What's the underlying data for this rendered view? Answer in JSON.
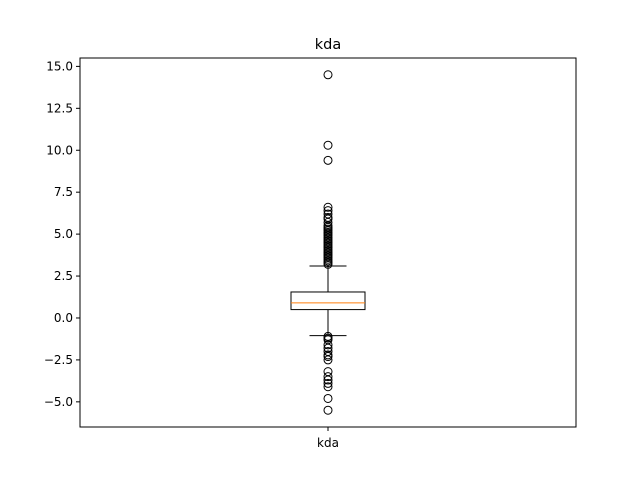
{
  "chart_data": {
    "type": "box",
    "title": "kda",
    "xlabel": "",
    "ylabel": "",
    "categories": [
      "kda"
    ],
    "ylim": [
      -6.5,
      15.5
    ],
    "yticks": [
      -5.0,
      -2.5,
      0.0,
      2.5,
      5.0,
      7.5,
      10.0,
      12.5,
      15.0
    ],
    "ytick_labels": [
      "−5.0",
      "−2.5",
      "0.0",
      "2.5",
      "5.0",
      "7.5",
      "10.0",
      "12.5",
      "15.0"
    ],
    "grid": false,
    "legend": "none",
    "box": {
      "whisker_low": -1.05,
      "q1": 0.5,
      "median": 0.9,
      "q3": 1.55,
      "whisker_high": 3.1
    },
    "outliers": [
      14.5,
      10.3,
      9.4,
      6.6,
      6.4,
      6.2,
      6.0,
      5.9,
      5.7,
      5.5,
      5.4,
      5.3,
      5.2,
      5.1,
      5.0,
      4.9,
      4.8,
      4.7,
      4.6,
      4.5,
      4.4,
      4.3,
      4.2,
      4.1,
      4.0,
      3.9,
      3.8,
      3.7,
      3.6,
      3.5,
      3.4,
      3.3,
      3.2,
      -1.1,
      -1.2,
      -1.3,
      -1.6,
      -1.8,
      -2.0,
      -2.2,
      -2.3,
      -2.5,
      -3.2,
      -3.5,
      -3.7,
      -3.9,
      -4.1,
      -4.8,
      -5.5
    ],
    "colors": {
      "median": "#ff7f0e",
      "box": "#000000",
      "outlier_edge": "#000000"
    }
  }
}
